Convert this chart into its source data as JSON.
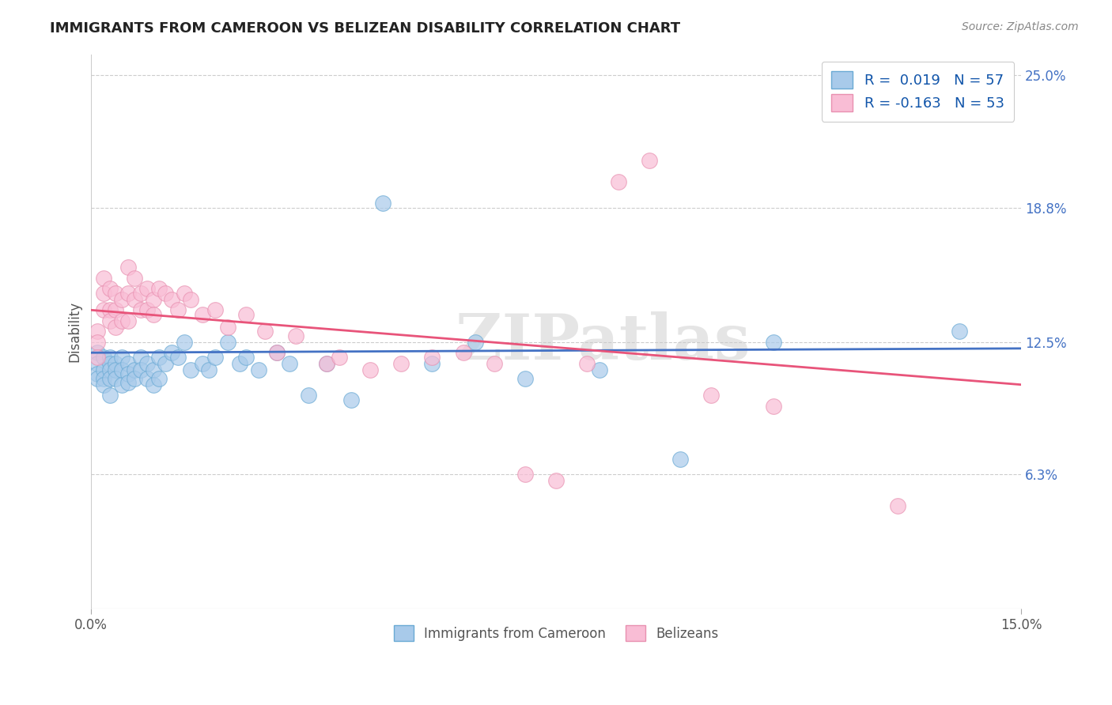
{
  "title": "IMMIGRANTS FROM CAMEROON VS BELIZEAN DISABILITY CORRELATION CHART",
  "source_text": "Source: ZipAtlas.com",
  "ylabel": "Disability",
  "xlim": [
    0.0,
    0.15
  ],
  "ylim": [
    0.0,
    0.26
  ],
  "ytick_positions": [
    0.063,
    0.125,
    0.188,
    0.25
  ],
  "ytick_labels": [
    "6.3%",
    "12.5%",
    "18.8%",
    "25.0%"
  ],
  "legend_r1": "R =  0.019",
  "legend_n1": "N = 57",
  "legend_r2": "R = -0.163",
  "legend_n2": "N = 53",
  "color_blue": "#A8CAEA",
  "color_pink": "#F9BDD5",
  "color_blue_edge": "#6aaad4",
  "color_pink_edge": "#e890b0",
  "color_blue_line": "#4472C4",
  "color_pink_line": "#E8547A",
  "color_grid": "#CCCCCC",
  "background_color": "#FFFFFF",
  "watermark_text": "ZIPatlas",
  "blue_scatter_x": [
    0.001,
    0.001,
    0.001,
    0.001,
    0.002,
    0.002,
    0.002,
    0.002,
    0.003,
    0.003,
    0.003,
    0.003,
    0.003,
    0.004,
    0.004,
    0.004,
    0.005,
    0.005,
    0.005,
    0.006,
    0.006,
    0.006,
    0.007,
    0.007,
    0.008,
    0.008,
    0.009,
    0.009,
    0.01,
    0.01,
    0.011,
    0.011,
    0.012,
    0.013,
    0.014,
    0.015,
    0.016,
    0.018,
    0.019,
    0.02,
    0.022,
    0.024,
    0.025,
    0.027,
    0.03,
    0.032,
    0.035,
    0.038,
    0.042,
    0.047,
    0.055,
    0.062,
    0.07,
    0.082,
    0.095,
    0.11,
    0.14
  ],
  "blue_scatter_y": [
    0.12,
    0.115,
    0.11,
    0.108,
    0.118,
    0.112,
    0.108,
    0.105,
    0.118,
    0.115,
    0.112,
    0.108,
    0.1,
    0.115,
    0.112,
    0.108,
    0.118,
    0.112,
    0.105,
    0.115,
    0.11,
    0.106,
    0.112,
    0.108,
    0.118,
    0.112,
    0.115,
    0.108,
    0.112,
    0.105,
    0.118,
    0.108,
    0.115,
    0.12,
    0.118,
    0.125,
    0.112,
    0.115,
    0.112,
    0.118,
    0.125,
    0.115,
    0.118,
    0.112,
    0.12,
    0.115,
    0.1,
    0.115,
    0.098,
    0.19,
    0.115,
    0.125,
    0.108,
    0.112,
    0.07,
    0.125,
    0.13
  ],
  "pink_scatter_x": [
    0.001,
    0.001,
    0.001,
    0.002,
    0.002,
    0.002,
    0.003,
    0.003,
    0.003,
    0.004,
    0.004,
    0.004,
    0.005,
    0.005,
    0.006,
    0.006,
    0.006,
    0.007,
    0.007,
    0.008,
    0.008,
    0.009,
    0.009,
    0.01,
    0.01,
    0.011,
    0.012,
    0.013,
    0.014,
    0.015,
    0.016,
    0.018,
    0.02,
    0.022,
    0.025,
    0.028,
    0.03,
    0.033,
    0.038,
    0.04,
    0.045,
    0.05,
    0.055,
    0.06,
    0.065,
    0.07,
    0.075,
    0.08,
    0.085,
    0.09,
    0.1,
    0.11,
    0.13
  ],
  "pink_scatter_y": [
    0.13,
    0.125,
    0.118,
    0.155,
    0.148,
    0.14,
    0.15,
    0.14,
    0.135,
    0.148,
    0.14,
    0.132,
    0.145,
    0.135,
    0.16,
    0.148,
    0.135,
    0.155,
    0.145,
    0.148,
    0.14,
    0.15,
    0.14,
    0.145,
    0.138,
    0.15,
    0.148,
    0.145,
    0.14,
    0.148,
    0.145,
    0.138,
    0.14,
    0.132,
    0.138,
    0.13,
    0.12,
    0.128,
    0.115,
    0.118,
    0.112,
    0.115,
    0.118,
    0.12,
    0.115,
    0.063,
    0.06,
    0.115,
    0.2,
    0.21,
    0.1,
    0.095,
    0.048
  ],
  "blue_line_y0": 0.12,
  "blue_line_y1": 0.122,
  "pink_line_y0": 0.14,
  "pink_line_y1": 0.105
}
